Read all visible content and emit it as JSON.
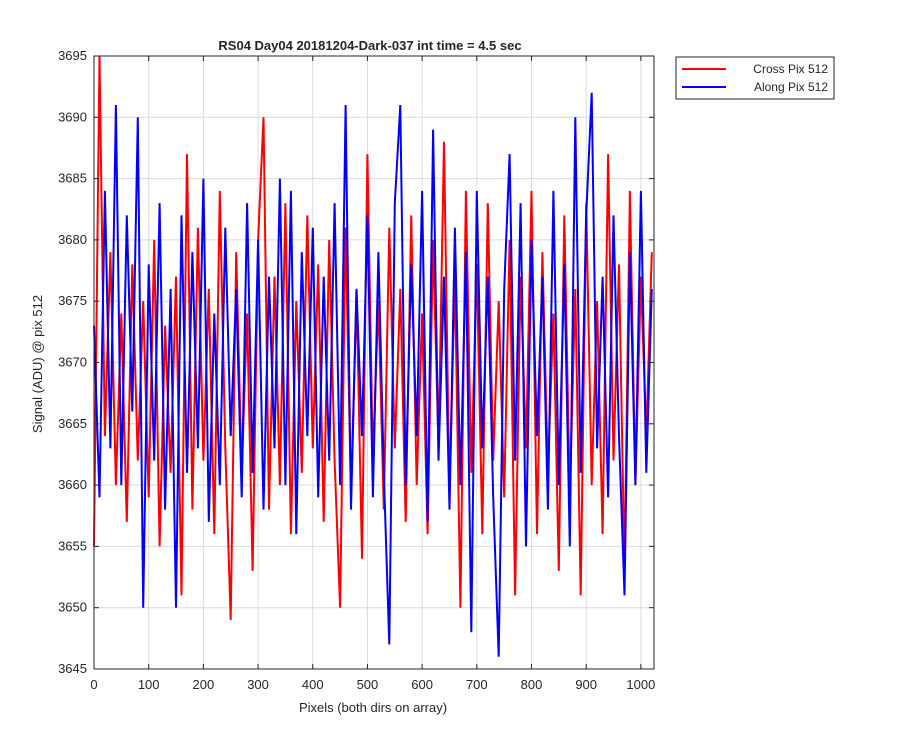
{
  "chart_data": {
    "type": "line",
    "title": "RS04 Day04 20181204-Dark-037 int time = 4.5 sec",
    "xlabel": "Pixels (both dirs on array)",
    "ylabel": "Signal (ADU) @ pix 512",
    "xlim": [
      0,
      1024
    ],
    "ylim": [
      3645,
      3695
    ],
    "xticks": [
      0,
      100,
      200,
      300,
      400,
      500,
      600,
      700,
      800,
      900,
      1000
    ],
    "yticks": [
      3645,
      3650,
      3655,
      3660,
      3665,
      3670,
      3675,
      3680,
      3685,
      3690,
      3695
    ],
    "grid": true,
    "legend_position": "outside top-right",
    "colors": {
      "cross": "#ff0000",
      "along": "#0000ff",
      "grid": "#dcdcdc",
      "axis": "#262626"
    },
    "series": [
      {
        "name": "Cross Pix 512",
        "color": "#ff0000",
        "x": [
          0,
          10,
          20,
          30,
          40,
          50,
          60,
          70,
          80,
          90,
          100,
          110,
          120,
          130,
          140,
          150,
          160,
          170,
          180,
          190,
          200,
          210,
          220,
          230,
          240,
          250,
          260,
          270,
          280,
          290,
          300,
          310,
          320,
          330,
          340,
          350,
          360,
          370,
          380,
          390,
          400,
          410,
          420,
          430,
          440,
          450,
          460,
          470,
          480,
          490,
          500,
          510,
          520,
          530,
          540,
          550,
          560,
          570,
          580,
          590,
          600,
          610,
          620,
          630,
          640,
          650,
          660,
          670,
          680,
          690,
          700,
          710,
          720,
          730,
          740,
          750,
          760,
          770,
          780,
          790,
          800,
          810,
          820,
          830,
          840,
          850,
          860,
          870,
          880,
          890,
          900,
          910,
          920,
          930,
          940,
          950,
          960,
          970,
          980,
          990,
          1000,
          1010,
          1020
        ],
        "values": [
          3655,
          3695,
          3664,
          3679,
          3660,
          3674,
          3657,
          3678,
          3662,
          3675,
          3659,
          3680,
          3655,
          3673,
          3661,
          3677,
          3651,
          3687,
          3658,
          3681,
          3662,
          3676,
          3656,
          3684,
          3663,
          3649,
          3679,
          3661,
          3674,
          3653,
          3680,
          3690,
          3658,
          3677,
          3660,
          3683,
          3656,
          3675,
          3661,
          3682,
          3663,
          3678,
          3657,
          3680,
          3662,
          3650,
          3681,
          3659,
          3676,
          3654,
          3687,
          3662,
          3675,
          3658,
          3681,
          3663,
          3676,
          3657,
          3682,
          3660,
          3674,
          3656,
          3680,
          3663,
          3688,
          3659,
          3677,
          3650,
          3684,
          3661,
          3678,
          3656,
          3683,
          3662,
          3675,
          3659,
          3680,
          3651,
          3677,
          3663,
          3684,
          3656,
          3679,
          3661,
          3674,
          3653,
          3682,
          3659,
          3676,
          3651,
          3683,
          3660,
          3675,
          3656,
          3687,
          3662,
          3678,
          3653,
          3684,
          3660,
          3677,
          3664,
          3679
        ]
      },
      {
        "name": "Along Pix 512",
        "color": "#0000ff",
        "x": [
          0,
          10,
          20,
          30,
          40,
          50,
          60,
          70,
          80,
          90,
          100,
          110,
          120,
          130,
          140,
          150,
          160,
          170,
          180,
          190,
          200,
          210,
          220,
          230,
          240,
          250,
          260,
          270,
          280,
          290,
          300,
          310,
          320,
          330,
          340,
          350,
          360,
          370,
          380,
          390,
          400,
          410,
          420,
          430,
          440,
          450,
          460,
          470,
          480,
          490,
          500,
          510,
          520,
          530,
          540,
          550,
          560,
          570,
          580,
          590,
          600,
          610,
          620,
          630,
          640,
          650,
          660,
          670,
          680,
          690,
          700,
          710,
          720,
          730,
          740,
          750,
          760,
          770,
          780,
          790,
          800,
          810,
          820,
          830,
          840,
          850,
          860,
          870,
          880,
          890,
          900,
          910,
          920,
          930,
          940,
          950,
          960,
          970,
          980,
          990,
          1000,
          1010,
          1020
        ],
        "values": [
          3673,
          3659,
          3684,
          3663,
          3691,
          3660,
          3682,
          3666,
          3690,
          3650,
          3678,
          3662,
          3683,
          3658,
          3676,
          3650,
          3682,
          3661,
          3679,
          3663,
          3685,
          3657,
          3674,
          3660,
          3681,
          3664,
          3676,
          3659,
          3683,
          3661,
          3680,
          3658,
          3677,
          3663,
          3685,
          3660,
          3684,
          3656,
          3679,
          3664,
          3681,
          3659,
          3677,
          3662,
          3683,
          3660,
          3691,
          3658,
          3676,
          3664,
          3682,
          3659,
          3679,
          3661,
          3647,
          3683,
          3691,
          3660,
          3678,
          3664,
          3684,
          3657,
          3689,
          3662,
          3677,
          3658,
          3681,
          3660,
          3679,
          3648,
          3684,
          3663,
          3677,
          3659,
          3646,
          3676,
          3687,
          3662,
          3683,
          3655,
          3680,
          3664,
          3677,
          3658,
          3684,
          3660,
          3678,
          3655,
          3690,
          3661,
          3682,
          3692,
          3663,
          3677,
          3659,
          3682,
          3664,
          3651,
          3679,
          3660,
          3684,
          3661,
          3676
        ]
      }
    ]
  }
}
